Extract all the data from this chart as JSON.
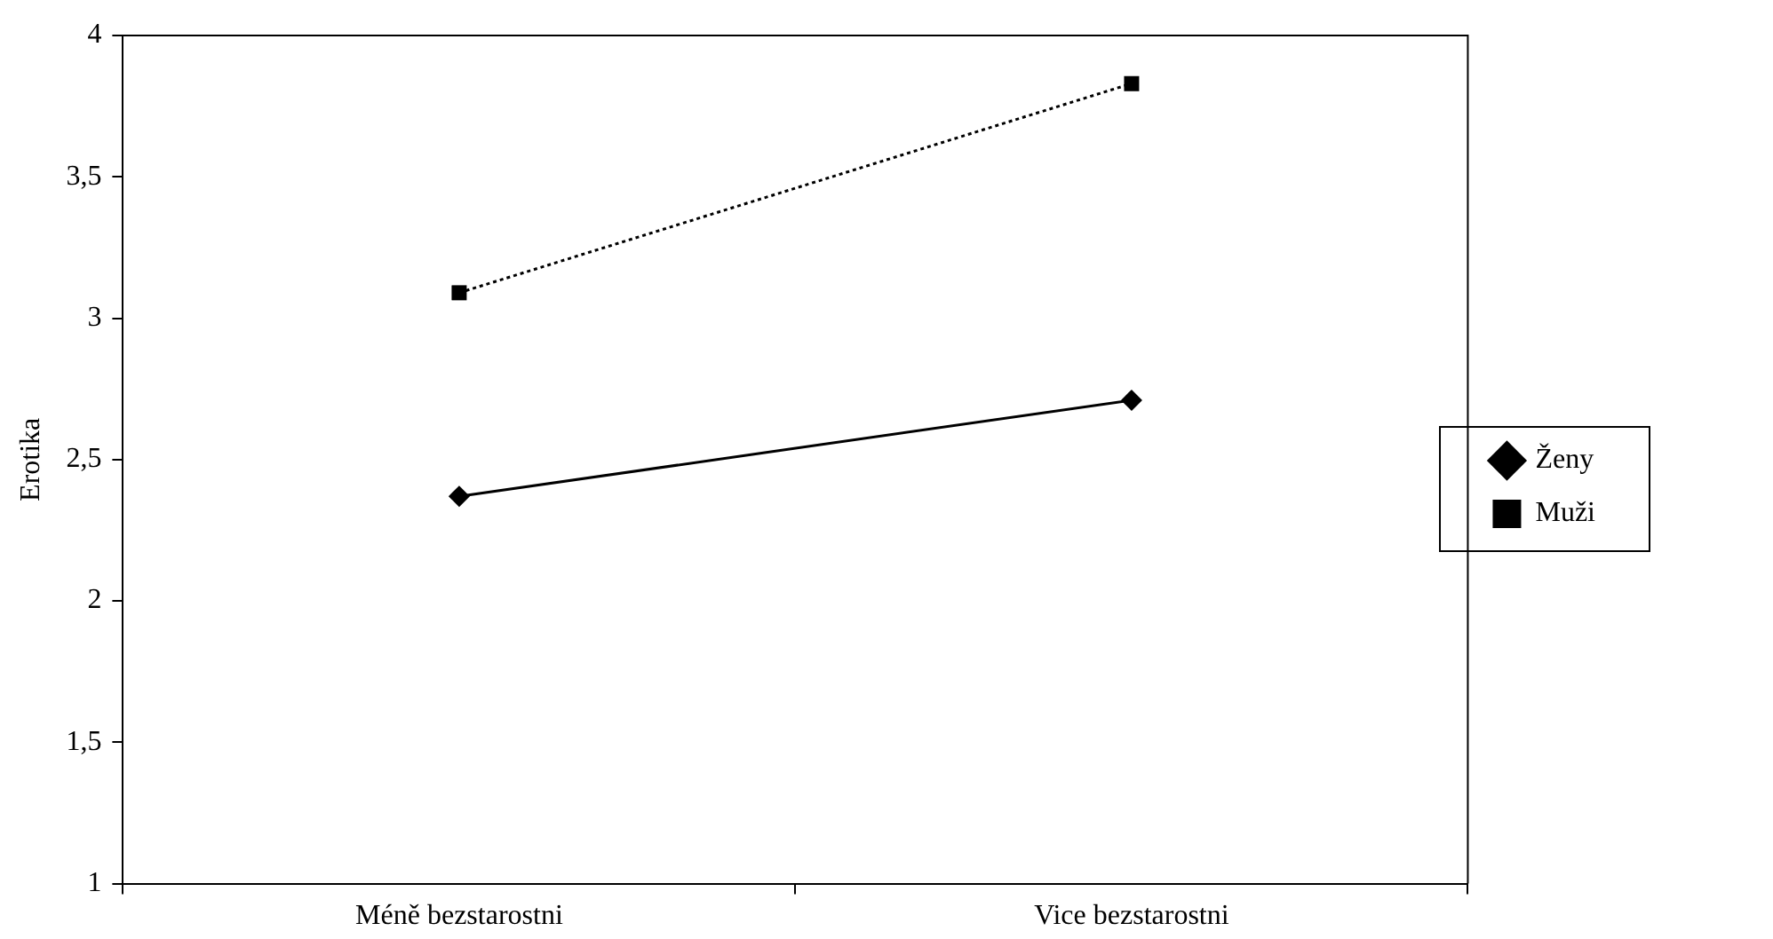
{
  "chart_data": {
    "type": "line",
    "ylabel": "Erotika",
    "categories": [
      "Méně bezstarostni",
      "Vice bezstarostni"
    ],
    "series": [
      {
        "name": "Ženy",
        "color": "#000000",
        "values": [
          2.37,
          2.71
        ],
        "marker": "diamond",
        "line_style": "solid"
      },
      {
        "name": "Muži",
        "color": "#000000",
        "values": [
          3.09,
          3.83
        ],
        "marker": "square",
        "line_style": "dotted"
      }
    ],
    "ylim": [
      1,
      4
    ],
    "yticks": [
      1,
      {
        "value": 1.5,
        "label": "1,5"
      },
      2,
      {
        "value": 2.5,
        "label": "2,5"
      },
      3,
      {
        "value": 3.5,
        "label": "3,5"
      },
      4
    ],
    "grid": false,
    "legend": "right"
  }
}
